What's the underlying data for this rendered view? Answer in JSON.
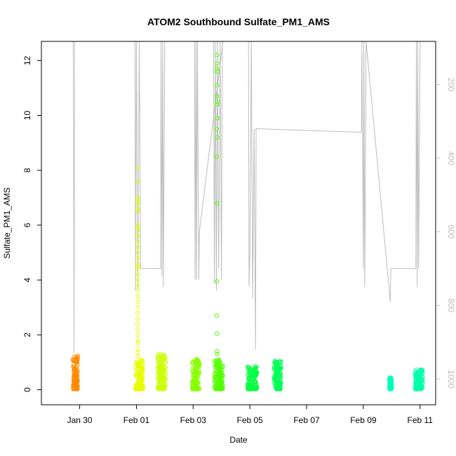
{
  "chart_data": {
    "type": "scatter",
    "title": "ATOM2 Southbound Sulfate_PM1_AMS",
    "xlabel": "Date",
    "ylabel": "Sulfate_PM1_AMS",
    "x_ticks": [
      "Jan 30",
      "Feb 01",
      "Feb 03",
      "Feb 05",
      "Feb 07",
      "Feb 09",
      "Feb 11"
    ],
    "x_tick_days": [
      30,
      32,
      34,
      36,
      38,
      40,
      42
    ],
    "xlim_days": [
      28.65,
      42.55
    ],
    "y_ticks": [
      0,
      2,
      4,
      6,
      8,
      10,
      12
    ],
    "ylim": [
      -0.55,
      12.7
    ],
    "right_axis_ticks": [
      200,
      400,
      600,
      800,
      1000
    ],
    "right_axis_range": [
      1070,
      83
    ],
    "right_axis_color": "#bdbdbd",
    "grid": false,
    "marker": "open-circle",
    "clusters": [
      {
        "day_start": 29.77,
        "day_end": 29.93,
        "color": "#ff8c00",
        "max": 1.25,
        "spikes": []
      },
      {
        "day_start": 31.97,
        "day_end": 32.23,
        "color": "#e6ff00",
        "max": 1.1,
        "spikes": [
          8.1,
          7.6,
          7.0,
          6.9,
          6.8,
          6.6,
          6.5,
          6.0,
          5.9,
          5.8,
          5.6,
          5.4,
          5.2,
          5.0,
          4.8,
          4.6,
          4.5,
          4.4,
          4.2,
          4.0,
          3.8,
          3.6,
          3.4,
          3.2,
          3.0,
          2.8,
          2.6,
          2.4,
          2.2,
          2.0,
          1.8,
          1.7,
          1.5,
          1.35,
          1.2
        ]
      },
      {
        "day_start": 32.75,
        "day_end": 33.03,
        "color": "#ccff00",
        "max": 1.3,
        "spikes": []
      },
      {
        "day_start": 33.97,
        "day_end": 34.23,
        "color": "#88ff00",
        "max": 1.15,
        "spikes": []
      },
      {
        "day_start": 34.75,
        "day_end": 35.05,
        "color": "#55ff00",
        "max": 1.1,
        "spikes": [
          12.2,
          11.9,
          11.7,
          11.6,
          11.1,
          10.7,
          10.5,
          10.4,
          9.9,
          9.5,
          9.2,
          8.5,
          6.8,
          3.95,
          2.7,
          2.05,
          1.4,
          1.3
        ]
      },
      {
        "day_start": 35.92,
        "day_end": 36.25,
        "color": "#00ff40",
        "max": 0.85,
        "spikes": []
      },
      {
        "day_start": 36.85,
        "day_end": 37.1,
        "color": "#00ff55",
        "max": 1.05,
        "spikes": []
      },
      {
        "day_start": 40.92,
        "day_end": 41.0,
        "color": "#00ffbb",
        "max": 0.45,
        "spikes": []
      },
      {
        "day_start": 41.82,
        "day_end": 42.1,
        "color": "#00ffaa",
        "max": 0.75,
        "spikes": []
      }
    ],
    "overlay_line": {
      "color": "#bdbdbd",
      "points": [
        [
          29.77,
          83
        ],
        [
          29.78,
          200
        ],
        [
          29.8,
          930
        ],
        [
          29.82,
          83
        ],
        [
          31.95,
          83
        ],
        [
          31.97,
          760
        ],
        [
          32.0,
          83
        ],
        [
          32.05,
          760
        ],
        [
          32.1,
          83
        ],
        [
          32.15,
          700
        ],
        [
          32.85,
          700
        ],
        [
          32.87,
          83
        ],
        [
          32.9,
          720
        ],
        [
          32.93,
          83
        ],
        [
          32.95,
          750
        ],
        [
          33.0,
          83
        ],
        [
          34.05,
          83
        ],
        [
          34.07,
          730
        ],
        [
          34.1,
          83
        ],
        [
          34.12,
          730
        ],
        [
          34.15,
          83
        ],
        [
          34.2,
          730
        ],
        [
          34.22,
          600
        ],
        [
          35.05,
          83
        ],
        [
          34.72,
          83
        ],
        [
          34.75,
          740
        ],
        [
          34.78,
          83
        ],
        [
          34.82,
          760
        ],
        [
          34.85,
          83
        ],
        [
          34.9,
          700
        ],
        [
          34.95,
          83
        ],
        [
          35.0,
          730
        ],
        [
          35.03,
          83
        ],
        [
          35.95,
          83
        ],
        [
          35.97,
          750
        ],
        [
          36.0,
          650
        ],
        [
          36.05,
          83
        ],
        [
          36.1,
          780
        ],
        [
          36.15,
          320
        ],
        [
          36.2,
          920
        ],
        [
          36.22,
          320
        ],
        [
          39.93,
          330
        ],
        [
          39.95,
          83
        ],
        [
          40.0,
          700
        ],
        [
          40.02,
          83
        ],
        [
          40.05,
          750
        ],
        [
          40.1,
          83
        ],
        [
          40.95,
          790
        ],
        [
          40.97,
          700
        ],
        [
          41.85,
          700
        ],
        [
          41.87,
          83
        ],
        [
          41.9,
          750
        ],
        [
          41.92,
          83
        ],
        [
          41.95,
          700
        ],
        [
          42.0,
          83
        ]
      ]
    }
  }
}
